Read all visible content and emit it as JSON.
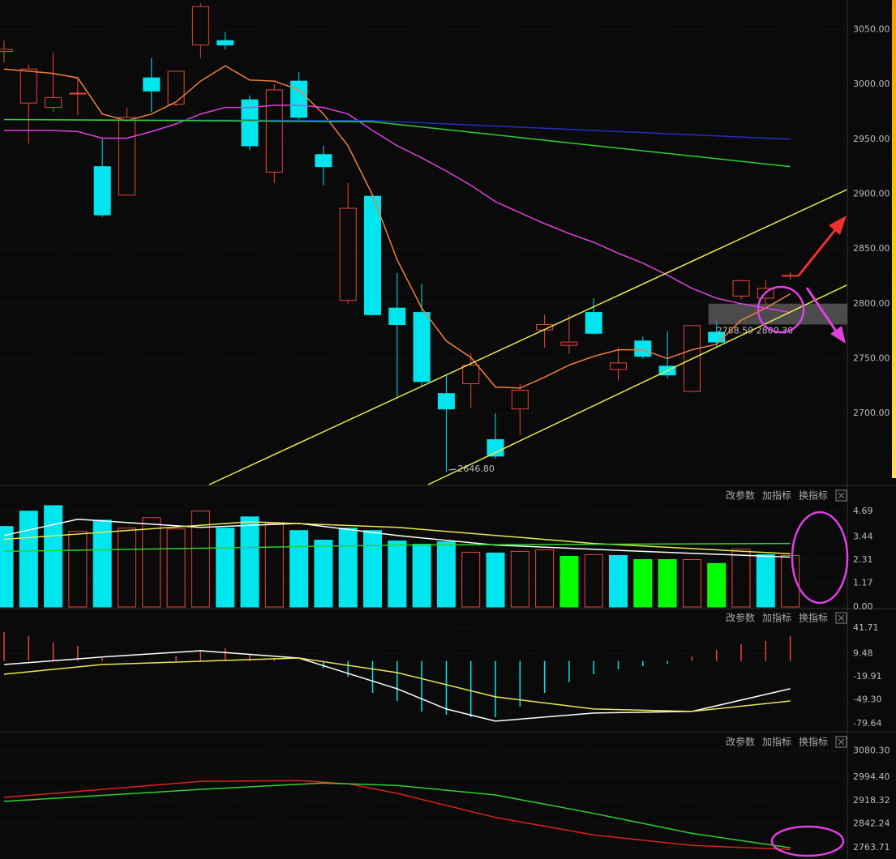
{
  "chart_data": [
    {
      "type": "candlestick",
      "open": [
        3030,
        2983,
        2979,
        2992,
        2925,
        2899,
        3006,
        2982,
        3036,
        3040,
        2986,
        2920,
        3003,
        2936,
        2803,
        2898,
        2796,
        2792,
        2718,
        2727,
        2676,
        2704,
        2776,
        2762,
        2792,
        2740,
        2766,
        2743,
        2720,
        2774,
        2807,
        2805,
        2825
      ],
      "high": [
        3040,
        3018,
        3029,
        3007,
        2950,
        2979,
        3024,
        3012,
        3074,
        3048,
        2990,
        3000,
        3011,
        2944,
        2910,
        2898,
        2828,
        2818,
        2735,
        2755,
        2700,
        2727,
        2790,
        2790,
        2805,
        2760,
        2770,
        2775,
        2780,
        2785,
        2822,
        2822,
        2829
      ],
      "low": [
        3020,
        2946,
        2975,
        2972,
        2879,
        2899,
        2975,
        2980,
        3024,
        3032,
        2940,
        2910,
        2968,
        2908,
        2800,
        2789,
        2715,
        2725,
        2646.8,
        2705,
        2659,
        2680,
        2760,
        2754,
        2772,
        2730,
        2750,
        2732,
        2720,
        2760,
        2804,
        2800,
        2822
      ],
      "close": [
        3032,
        3014,
        2988,
        2992,
        2881,
        2970,
        2994,
        3012,
        3071,
        3036,
        2944,
        2995,
        2970,
        2925,
        2887,
        2790,
        2781,
        2729,
        2704,
        2744,
        2661,
        2721,
        2781,
        2765,
        2773,
        2746,
        2752,
        2735,
        2780,
        2765,
        2821,
        2814,
        2826
      ],
      "up_color": "#e8453c",
      "down_color": "#00e5ee",
      "series": [
        {
          "color": "#f0803c",
          "values": [
            3014,
            3012,
            3010,
            3006,
            2973,
            2967,
            2973,
            2984,
            3003,
            3017,
            3004,
            3003,
            2995,
            2973,
            2944,
            2899,
            2840,
            2796,
            2766,
            2751,
            2724,
            2723,
            2733,
            2744,
            2752,
            2758,
            2758,
            2750,
            2758,
            2763,
            2785,
            2796,
            2809
          ]
        },
        {
          "color": "#e040e0",
          "values": [
            2958,
            2958,
            2958,
            2957,
            2951,
            2951,
            2957,
            2964,
            2973,
            2979,
            2979,
            2981,
            2981,
            2979,
            2973,
            2958,
            2944,
            2933,
            2921,
            2908,
            2893,
            2883,
            2873,
            2864,
            2856,
            2846,
            2837,
            2826,
            2814,
            2805,
            2800,
            2796,
            2792
          ]
        },
        {
          "color": "#2030c0",
          "x": [
            0,
            15,
            32
          ],
          "values": [
            2968,
            2967,
            2950
          ]
        },
        {
          "color": "#30d030",
          "x": [
            0,
            15,
            32
          ],
          "values": [
            2968,
            2966,
            2925
          ]
        },
        {
          "color": "#e8e850",
          "x": [
            8.35,
            34.3
          ],
          "values": [
            2635,
            2904
          ]
        },
        {
          "color": "#e8e850",
          "x": [
            17.26,
            34.3
          ],
          "values": [
            2635,
            2817
          ]
        }
      ],
      "ylim": [
        2635,
        3077
      ],
      "yticks": [
        {
          "value": 3050,
          "label": "3050.00"
        },
        {
          "value": 3000,
          "label": "3000.00"
        },
        {
          "value": 2950,
          "label": "2950.00"
        },
        {
          "value": 2900,
          "label": "2900.00"
        },
        {
          "value": 2850,
          "label": "2850.00"
        },
        {
          "value": 2800,
          "label": "2800.00"
        },
        {
          "value": 2750,
          "label": "2750.00"
        },
        {
          "value": 2700,
          "label": "2700.00"
        }
      ],
      "low_label": {
        "index": 18,
        "label": "2646.80"
      },
      "band": {
        "from_index": 29,
        "range": [
          2781,
          2800
        ],
        "label": "2788.59  2800.30"
      }
    },
    {
      "type": "bar",
      "buttons": [
        "改参数",
        "加指标",
        "换指标"
      ],
      "values": [
        3.94,
        4.69,
        4.96,
        3.7,
        4.25,
        3.86,
        4.37,
        3.82,
        4.69,
        3.86,
        4.41,
        4.09,
        3.74,
        3.27,
        3.86,
        3.74,
        3.23,
        3.07,
        3.19,
        2.68,
        2.64,
        2.72,
        2.8,
        2.48,
        2.56,
        2.52,
        2.32,
        2.32,
        2.32,
        2.13,
        2.83,
        2.56,
        2.52
      ],
      "colors": [
        "#00e5ee",
        "#00e5ee",
        "#00e5ee",
        "#e8453c",
        "#00e5ee",
        "#e8453c",
        "#e8453c",
        "#e8453c",
        "#e8453c",
        "#00e5ee",
        "#00e5ee",
        "#e8453c",
        "#00e5ee",
        "#00e5ee",
        "#00e5ee",
        "#00e5ee",
        "#00e5ee",
        "#00e5ee",
        "#00e5ee",
        "#e8453c",
        "#00e5ee",
        "#e8453c",
        "#e8453c",
        "#00ff00",
        "#e8453c",
        "#00e5ee",
        "#00ff00",
        "#00ff00",
        "#e8453c",
        "#00ff00",
        "#e8453c",
        "#00e5ee",
        "#e8453c"
      ],
      "hollow": "#e8453c",
      "series": [
        {
          "color": "#ffffff",
          "x": [
            0,
            3,
            8,
            12,
            16,
            20,
            26,
            32
          ],
          "values": [
            3.5,
            4.29,
            3.9,
            4.09,
            3.5,
            3.03,
            2.72,
            2.44
          ]
        },
        {
          "color": "#e8e850",
          "x": [
            0,
            10,
            16,
            24,
            32
          ],
          "values": [
            3.31,
            4.17,
            3.9,
            3.11,
            2.6
          ]
        },
        {
          "color": "#30d030",
          "x": [
            0,
            16,
            32
          ],
          "values": [
            2.72,
            3.03,
            3.11
          ]
        }
      ],
      "ylim": [
        0,
        5.87
      ],
      "yticks": [
        4.69,
        3.44,
        2.31,
        1.17,
        {
          "value": 0,
          "label": "0.00"
        }
      ]
    },
    {
      "type": "macd",
      "buttons": [
        "改参数",
        "加指标",
        "换指标"
      ],
      "values": [
        36.6,
        31.5,
        23.4,
        19.1,
        3.7,
        -0.4,
        0.6,
        5.8,
        13.0,
        16.0,
        7.8,
        3.7,
        -0.4,
        -9.7,
        -19.9,
        -40.5,
        -50.8,
        -64.2,
        -68.3,
        -71.3,
        -71.3,
        -57.9,
        -40.5,
        -27.1,
        -16.9,
        -10.7,
        -6.6,
        -3.5,
        5.8,
        14.0,
        21.2,
        25.3,
        31.5
      ],
      "pos_color": "#e8453c",
      "neg_color": "#00e5ee",
      "series": [
        {
          "color": "#ffffff",
          "x": [
            0,
            4,
            8,
            12,
            16,
            18,
            20,
            24,
            28,
            32
          ],
          "values": [
            -4.5,
            5,
            13,
            3.7,
            -35.3,
            -61,
            -76.4,
            -66.1,
            -64.1,
            -35.3
          ]
        },
        {
          "color": "#e8e850",
          "x": [
            0,
            4,
            12,
            16,
            20,
            24,
            28,
            32
          ],
          "values": [
            -16.9,
            -4.5,
            3.7,
            -14.8,
            -45.6,
            -61,
            -64.1,
            -50.8
          ]
        }
      ],
      "ylim": [
        -86.8,
        65.4
      ],
      "yticks": [
        41.71,
        9.48,
        -19.91,
        {
          "value": -49.3,
          "label": "-49.30"
        },
        -79.64
      ]
    },
    {
      "type": "line",
      "buttons": [
        "改参数",
        "加指标",
        "换指标"
      ],
      "series": [
        {
          "color": "#e02020",
          "x": [
            0,
            4,
            8,
            12,
            14,
            16,
            20,
            24,
            28,
            32
          ],
          "values": [
            2928.6,
            2954.7,
            2980.9,
            2983.5,
            2973,
            2941.6,
            2863,
            2805.5,
            2771.5,
            2758
          ]
        },
        {
          "color": "#30d030",
          "x": [
            0,
            8,
            13,
            16,
            20,
            24,
            28,
            32
          ],
          "values": [
            2915.5,
            2954.7,
            2975.7,
            2967.8,
            2936.4,
            2876.3,
            2810.9,
            2763.8
          ]
        }
      ],
      "ylim": [
        2732.3,
        3137.9
      ],
      "yticks": [
        {
          "value": 3080.3,
          "label": "3080.30"
        },
        {
          "value": 2994.4,
          "label": "2994.40"
        },
        2918.32,
        2842.24,
        2763.71
      ]
    }
  ]
}
